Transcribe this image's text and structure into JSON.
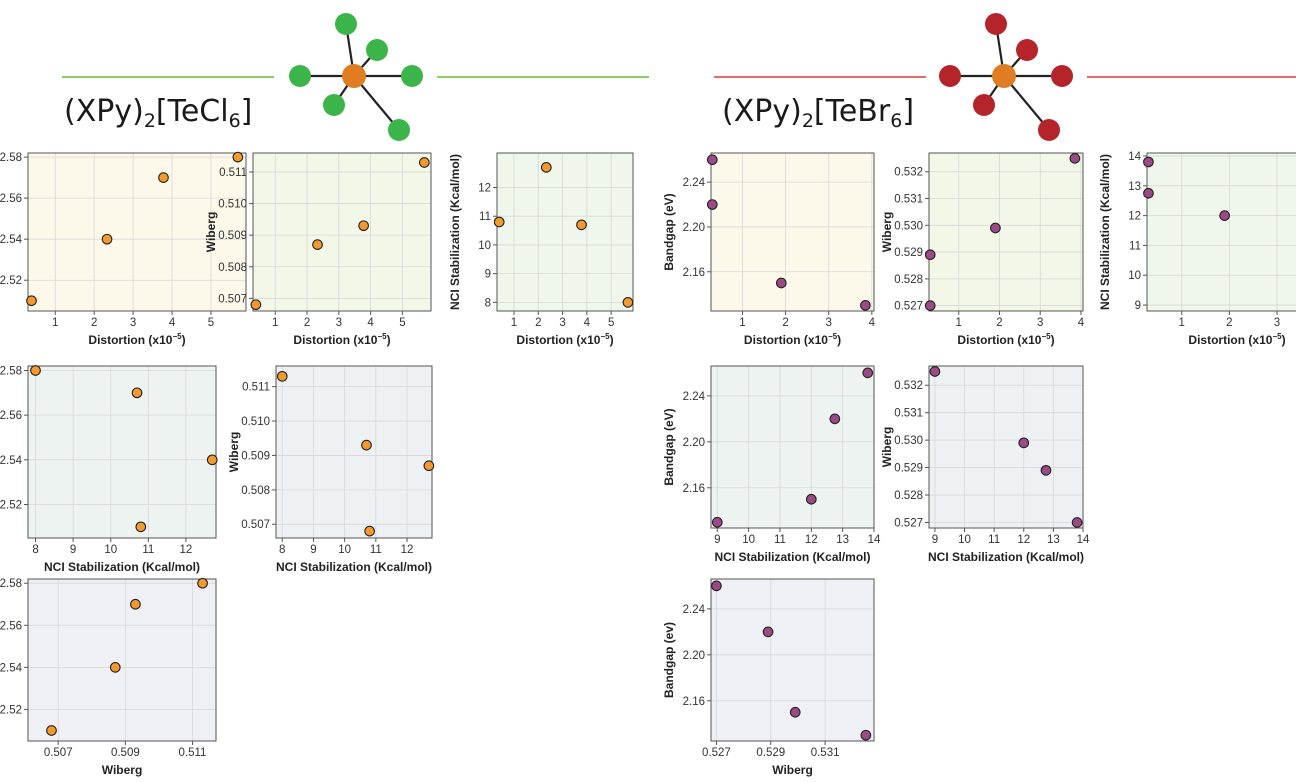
{
  "groups": [
    {
      "title_main": "(XPy)",
      "title_sub1": "2",
      "title_mid": "[TeCl",
      "title_sub2": "6",
      "title_end": "]",
      "line_color": "#8fcf6a",
      "ligand_color": "#3bb54a",
      "center_color": "#e07d22"
    },
    {
      "title_main": "(XPy)",
      "title_sub1": "2",
      "title_mid": "[TeBr",
      "title_sub2": "6",
      "title_end": "]",
      "line_color": "#e56a6a",
      "ligand_color": "#b5242a",
      "center_color": "#e07d22"
    }
  ],
  "axis_text": {
    "distortion": "Distortion (x10",
    "distortion_exp": "−5",
    "distortion_close": ")",
    "nci": "NCI Stabilization (Kcal/mol)",
    "wiberg": "Wiberg",
    "bandgap_ev": "Bandgap (eV)",
    "bandgap_ev_lower": "Bandgap (ev)"
  },
  "chart_data": [
    {
      "type": "scatter",
      "id": "cl-dist-bg",
      "xlabel": "Distortion (x10^-5)",
      "ylabel": "Bandgap (eV)",
      "x": [
        0.39,
        2.33,
        3.78,
        5.69
      ],
      "y": [
        2.51,
        2.54,
        2.57,
        2.58
      ],
      "xlim": [
        0.3,
        5.9
      ],
      "ylim": [
        2.505,
        2.582
      ],
      "xticks": [
        1,
        2,
        3,
        4,
        5
      ],
      "yticks": [
        2.52,
        2.54,
        2.56,
        2.58
      ],
      "point_color": "#f39a2e",
      "background": "#fdf9ea"
    },
    {
      "type": "scatter",
      "id": "cl-dist-wib",
      "xlabel": "Distortion (x10^-5)",
      "ylabel": "Wiberg",
      "x": [
        0.39,
        2.33,
        3.78,
        5.69
      ],
      "y": [
        0.5068,
        0.5087,
        0.5093,
        0.5113
      ],
      "xlim": [
        0.3,
        5.9
      ],
      "ylim": [
        0.5066,
        0.5116
      ],
      "xticks": [
        1,
        2,
        3,
        4,
        5
      ],
      "yticks": [
        0.507,
        0.508,
        0.509,
        0.51,
        0.511
      ],
      "ytick_labels": [
        "0.507",
        "0.508",
        "0.509",
        "0.510",
        "0.511"
      ],
      "point_color": "#f39a2e",
      "background": "#f3f7e8"
    },
    {
      "type": "scatter",
      "id": "cl-dist-nci",
      "xlabel": "Distortion (x10^-5)",
      "ylabel": "NCI Stabilization (Kcal/mol)",
      "x": [
        0.39,
        2.33,
        3.78,
        5.69
      ],
      "y": [
        10.8,
        12.7,
        10.7,
        8.0
      ],
      "xlim": [
        0.3,
        5.9
      ],
      "ylim": [
        7.7,
        13.2
      ],
      "xticks": [
        1,
        2,
        3,
        4,
        5
      ],
      "yticks": [
        8,
        9,
        10,
        11,
        12
      ],
      "point_color": "#f39a2e",
      "background": "#eff6ec"
    },
    {
      "type": "scatter",
      "id": "cl-nci-bg",
      "xlabel": "NCI Stabilization (Kcal/mol)",
      "ylabel": "Bandgap (eV)",
      "x": [
        8.0,
        10.7,
        10.8,
        12.7
      ],
      "y": [
        2.58,
        2.57,
        2.51,
        2.54
      ],
      "xlim": [
        7.8,
        12.8
      ],
      "ylim": [
        2.505,
        2.582
      ],
      "xticks": [
        8,
        9,
        10,
        11,
        12
      ],
      "yticks": [
        2.52,
        2.54,
        2.56,
        2.58
      ],
      "point_color": "#f39a2e",
      "background": "#edf3f1"
    },
    {
      "type": "scatter",
      "id": "cl-nci-wib",
      "xlabel": "NCI Stabilization (Kcal/mol)",
      "ylabel": "Wiberg",
      "x": [
        8.0,
        10.7,
        10.8,
        12.7
      ],
      "y": [
        0.5113,
        0.5093,
        0.5068,
        0.5087
      ],
      "xlim": [
        7.8,
        12.8
      ],
      "ylim": [
        0.5066,
        0.5116
      ],
      "xticks": [
        8,
        9,
        10,
        11,
        12
      ],
      "yticks": [
        0.507,
        0.508,
        0.509,
        0.51,
        0.511
      ],
      "ytick_labels": [
        "0.507",
        "0.508",
        "0.509",
        "0.510",
        "0.511"
      ],
      "point_color": "#f39a2e",
      "background": "#edf1f3"
    },
    {
      "type": "scatter",
      "id": "cl-wib-bg",
      "xlabel": "Wiberg",
      "ylabel": "Bandgap (ev)",
      "x": [
        0.5068,
        0.5087,
        0.5093,
        0.5113
      ],
      "y": [
        2.51,
        2.54,
        2.57,
        2.58
      ],
      "xlim": [
        0.5061,
        0.5117
      ],
      "ylim": [
        2.505,
        2.582
      ],
      "xticks": [
        0.507,
        0.509,
        0.511
      ],
      "xtick_labels": [
        "0.507",
        "0.509",
        "0.511"
      ],
      "yticks": [
        2.52,
        2.54,
        2.56,
        2.58
      ],
      "point_color": "#f39a2e",
      "background": "#eff0f5"
    },
    {
      "type": "scatter",
      "id": "br-dist-bg",
      "xlabel": "Distortion (x10^-5)",
      "ylabel": "Bandgap (eV)",
      "x": [
        0.3,
        0.3,
        1.9,
        3.85
      ],
      "y": [
        2.26,
        2.22,
        2.15,
        2.13
      ],
      "xlim": [
        0.27,
        4.05
      ],
      "ylim": [
        2.125,
        2.266
      ],
      "xticks": [
        1,
        2,
        3,
        4
      ],
      "yticks": [
        2.16,
        2.2,
        2.24
      ],
      "ytick_labels": [
        "2.16",
        "2.20",
        "2.24"
      ],
      "point_color": "#9b4a86",
      "background": "#fdf9ea"
    },
    {
      "type": "scatter",
      "id": "br-dist-wib",
      "xlabel": "Distortion (x10^-5)",
      "ylabel": "Wiberg",
      "x": [
        0.3,
        0.3,
        1.9,
        3.85
      ],
      "y": [
        0.527,
        0.5289,
        0.5299,
        0.5325
      ],
      "xlim": [
        0.27,
        4.05
      ],
      "ylim": [
        0.5268,
        0.5327
      ],
      "xticks": [
        1,
        2,
        3,
        4
      ],
      "yticks": [
        0.527,
        0.528,
        0.529,
        0.53,
        0.531,
        0.532
      ],
      "ytick_labels": [
        "0.527",
        "0.528",
        "0.529",
        "0.530",
        "0.531",
        "0.532"
      ],
      "point_color": "#9b4a86",
      "background": "#f3f7e8"
    },
    {
      "type": "scatter",
      "id": "br-dist-nci",
      "xlabel": "Distortion (x10^-5)",
      "ylabel": "NCI Stabilization (Kcal/mol)",
      "x": [
        0.3,
        0.3,
        1.9,
        3.85
      ],
      "y": [
        13.8,
        12.75,
        12.0,
        9.0
      ],
      "xlim": [
        0.27,
        4.05
      ],
      "ylim": [
        8.8,
        14.1
      ],
      "xticks": [
        1,
        2,
        3
      ],
      "yticks": [
        9,
        10,
        11,
        12,
        13,
        14
      ],
      "point_color": "#9b4a86",
      "background": "#eff6ec"
    },
    {
      "type": "scatter",
      "id": "br-nci-bg",
      "xlabel": "NCI Stabilization (Kcal/mol)",
      "ylabel": "Bandgap (eV)",
      "x": [
        9.0,
        12.0,
        12.75,
        13.8
      ],
      "y": [
        2.13,
        2.15,
        2.22,
        2.26
      ],
      "xlim": [
        8.8,
        14.0
      ],
      "ylim": [
        2.125,
        2.266
      ],
      "xticks": [
        9,
        10,
        11,
        12,
        13,
        14
      ],
      "yticks": [
        2.16,
        2.2,
        2.24
      ],
      "ytick_labels": [
        "2.16",
        "2.20",
        "2.24"
      ],
      "point_color": "#9b4a86",
      "background": "#edf3f1"
    },
    {
      "type": "scatter",
      "id": "br-nci-wib",
      "xlabel": "NCI Stabilization (Kcal/mol)",
      "ylabel": "Wiberg",
      "x": [
        9.0,
        12.0,
        12.75,
        13.8
      ],
      "y": [
        0.5325,
        0.5299,
        0.5289,
        0.527
      ],
      "xlim": [
        8.8,
        14.0
      ],
      "ylim": [
        0.5268,
        0.5327
      ],
      "xticks": [
        9,
        10,
        11,
        12,
        13,
        14
      ],
      "yticks": [
        0.527,
        0.528,
        0.529,
        0.53,
        0.531,
        0.532
      ],
      "ytick_labels": [
        "0.527",
        "0.528",
        "0.529",
        "0.530",
        "0.531",
        "0.532"
      ],
      "point_color": "#9b4a86",
      "background": "#edf1f3"
    },
    {
      "type": "scatter",
      "id": "br-wib-bg",
      "xlabel": "Wiberg",
      "ylabel": "Bandgap (ev)",
      "x": [
        0.527,
        0.5289,
        0.5299,
        0.5325
      ],
      "y": [
        2.26,
        2.22,
        2.15,
        2.13
      ],
      "xlim": [
        0.5268,
        0.5328
      ],
      "ylim": [
        2.125,
        2.266
      ],
      "xticks": [
        0.527,
        0.529,
        0.531
      ],
      "xtick_labels": [
        "0.527",
        "0.529",
        "0.531"
      ],
      "yticks": [
        2.16,
        2.2,
        2.24
      ],
      "ytick_labels": [
        "2.16",
        "2.20",
        "2.24"
      ],
      "point_color": "#9b4a86",
      "background": "#eff0f5"
    }
  ]
}
